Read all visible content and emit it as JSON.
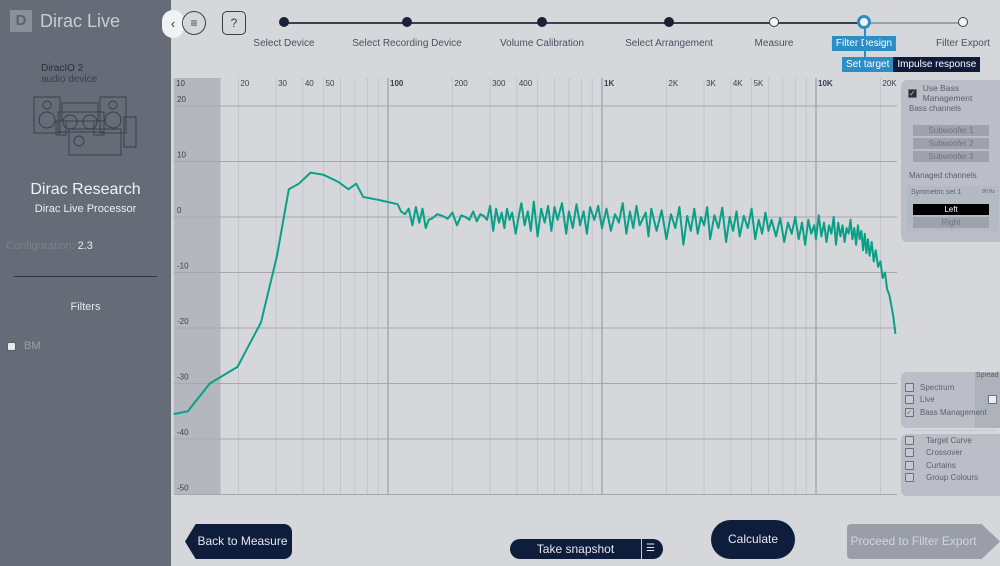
{
  "app": {
    "logo_mark": "D",
    "title": "Dirac Live"
  },
  "device": {
    "name": "DiracIO 2",
    "sub": "audio device",
    "brand": "Dirac Research",
    "processor": "Dirac Live Processor",
    "config_label": "Configuration:",
    "config_value": "2.3"
  },
  "filters": {
    "title": "Filters",
    "items": [
      {
        "label": "BM",
        "checked": false
      }
    ]
  },
  "toolbar": {
    "collapse_icon": "chevron-left-icon",
    "menu_icon": "hamburger-icon",
    "help_label": "?"
  },
  "steps": [
    {
      "label": "Select Device",
      "state": "done"
    },
    {
      "label": "Select Recording Device",
      "state": "done"
    },
    {
      "label": "Volume Calibration",
      "state": "done"
    },
    {
      "label": "Select Arrangement",
      "state": "done"
    },
    {
      "label": "Measure",
      "state": "open"
    },
    {
      "label": "Filter Design",
      "state": "current"
    },
    {
      "label": "Filter Export",
      "state": "open"
    }
  ],
  "subtabs": {
    "set_target": "Set target",
    "impulse": "Impulse response"
  },
  "bass": {
    "use_label": "Use Bass Management",
    "use_checked": true,
    "channels_title": "Bass channels",
    "channels": [
      "Subwoofer 1",
      "Subwoofer 2",
      "Subwoofer 3"
    ],
    "managed_title": "Managed channels",
    "set_name": "Symmetric set 1",
    "set_freq": "90 Hz",
    "managed": [
      {
        "label": "Left",
        "selected": true
      },
      {
        "label": "Right",
        "selected": false
      }
    ]
  },
  "display": {
    "spread_label": "Spread",
    "options": [
      {
        "label": "Spectrum",
        "checked": false
      },
      {
        "label": "Live",
        "checked": false
      },
      {
        "label": "Bass Management",
        "checked": true
      }
    ],
    "options2": [
      {
        "label": "Target Curve",
        "checked": false
      },
      {
        "label": "Crossover",
        "checked": false
      },
      {
        "label": "Curtains",
        "checked": false
      },
      {
        "label": "Group Colours",
        "checked": false
      }
    ]
  },
  "buttons": {
    "back": "Back to Measure",
    "snapshot": "Take snapshot",
    "calculate": "Calculate",
    "proceed": "Proceed to Filter Export"
  },
  "chart_data": {
    "type": "line",
    "xscale": "log",
    "xlim": [
      10,
      24000
    ],
    "ylim": [
      -50,
      20
    ],
    "grid": true,
    "x_ticks": [
      {
        "v": 10,
        "l": "10"
      },
      {
        "v": 20,
        "l": "20"
      },
      {
        "v": 30,
        "l": "30"
      },
      {
        "v": 40,
        "l": "40"
      },
      {
        "v": 50,
        "l": "50"
      },
      {
        "v": 100,
        "l": "100"
      },
      {
        "v": 200,
        "l": "200"
      },
      {
        "v": 300,
        "l": "300"
      },
      {
        "v": 400,
        "l": "400"
      },
      {
        "v": 1000,
        "l": "1K"
      },
      {
        "v": 2000,
        "l": "2K"
      },
      {
        "v": 3000,
        "l": "3K"
      },
      {
        "v": 4000,
        "l": "4K"
      },
      {
        "v": 5000,
        "l": "5K"
      },
      {
        "v": 10000,
        "l": "10K"
      },
      {
        "v": 20000,
        "l": "20K"
      }
    ],
    "y_ticks": [
      20,
      10,
      0,
      -10,
      -20,
      -30,
      -40,
      -50
    ],
    "shaded_below_hz": 16.5,
    "series_color": "#0aa088",
    "points": [
      [
        10,
        -35.5
      ],
      [
        11.6,
        -35
      ],
      [
        14.7,
        -30
      ],
      [
        19.8,
        -27
      ],
      [
        25.5,
        -19
      ],
      [
        30.3,
        -7
      ],
      [
        34.4,
        5
      ],
      [
        38.3,
        6
      ],
      [
        43.5,
        8
      ],
      [
        50,
        7.6
      ],
      [
        58.7,
        6.3
      ],
      [
        65.3,
        5
      ],
      [
        71,
        6
      ],
      [
        76.6,
        3.6
      ],
      [
        90,
        3.1
      ],
      [
        111,
        2.3
      ],
      [
        115,
        1
      ],
      [
        120,
        0.5
      ],
      [
        125,
        1.5
      ],
      [
        130,
        -1.5
      ],
      [
        135,
        1.8
      ],
      [
        140,
        -1
      ],
      [
        145,
        1.5
      ],
      [
        150,
        -2
      ],
      [
        155,
        -0.5
      ],
      [
        160,
        -0.3
      ],
      [
        170,
        0.5
      ],
      [
        180,
        0.2
      ],
      [
        190,
        -0.3
      ],
      [
        200,
        0.8
      ],
      [
        210,
        -1.5
      ],
      [
        220,
        0.3
      ],
      [
        230,
        0
      ],
      [
        240,
        -0.5
      ],
      [
        250,
        1
      ],
      [
        260,
        -0.8
      ],
      [
        270,
        0.5
      ],
      [
        280,
        0.2
      ],
      [
        290,
        -0.5
      ],
      [
        300,
        2
      ],
      [
        310,
        -2.5
      ],
      [
        320,
        1.5
      ],
      [
        330,
        -1
      ],
      [
        340,
        0.8
      ],
      [
        350,
        -2
      ],
      [
        360,
        1.5
      ],
      [
        370,
        -0.5
      ],
      [
        380,
        0.8
      ],
      [
        395,
        -3
      ],
      [
        410,
        0.5
      ],
      [
        420,
        2.5
      ],
      [
        435,
        -1.5
      ],
      [
        450,
        1
      ],
      [
        465,
        -2.5
      ],
      [
        480,
        2.8
      ],
      [
        500,
        -3.5
      ],
      [
        520,
        1.5
      ],
      [
        540,
        -1
      ],
      [
        560,
        2
      ],
      [
        580,
        -2.5
      ],
      [
        600,
        1.8
      ],
      [
        620,
        -0.5
      ],
      [
        650,
        2.5
      ],
      [
        680,
        -3
      ],
      [
        700,
        1
      ],
      [
        730,
        -2
      ],
      [
        760,
        2.3
      ],
      [
        790,
        -1.5
      ],
      [
        820,
        1
      ],
      [
        850,
        -3
      ],
      [
        880,
        1.8
      ],
      [
        920,
        -0.5
      ],
      [
        960,
        2
      ],
      [
        1000,
        -2
      ],
      [
        1050,
        1.5
      ],
      [
        1100,
        -2.5
      ],
      [
        1150,
        0.5
      ],
      [
        1200,
        -1
      ],
      [
        1250,
        2.5
      ],
      [
        1300,
        -3
      ],
      [
        1350,
        1
      ],
      [
        1400,
        -2
      ],
      [
        1450,
        2
      ],
      [
        1500,
        -1.5
      ],
      [
        1600,
        0.8
      ],
      [
        1650,
        -3.5
      ],
      [
        1700,
        1.5
      ],
      [
        1800,
        -2.5
      ],
      [
        1900,
        1.2
      ],
      [
        2000,
        -4
      ],
      [
        2100,
        0.5
      ],
      [
        2200,
        -2
      ],
      [
        2300,
        1.8
      ],
      [
        2400,
        -5
      ],
      [
        2500,
        0.2
      ],
      [
        2600,
        -2.5
      ],
      [
        2700,
        1.5
      ],
      [
        2800,
        -3
      ],
      [
        2900,
        0
      ],
      [
        3000,
        -1.5
      ],
      [
        3100,
        1.8
      ],
      [
        3200,
        -4
      ],
      [
        3350,
        0.3
      ],
      [
        3500,
        -2
      ],
      [
        3650,
        1.7
      ],
      [
        3800,
        -4.5
      ],
      [
        3950,
        0
      ],
      [
        4100,
        -2.5
      ],
      [
        4250,
        1
      ],
      [
        4400,
        -3.5
      ],
      [
        4600,
        0.2
      ],
      [
        4800,
        -2
      ],
      [
        5000,
        1.5
      ],
      [
        5200,
        -4
      ],
      [
        5400,
        -0.5
      ],
      [
        5600,
        -3
      ],
      [
        5800,
        0.8
      ],
      [
        6000,
        -2.5
      ],
      [
        6200,
        -0.5
      ],
      [
        6500,
        -3.5
      ],
      [
        6800,
        -0.2
      ],
      [
        7100,
        -4.5
      ],
      [
        7400,
        -1
      ],
      [
        7700,
        -3
      ],
      [
        8000,
        0
      ],
      [
        8300,
        -4
      ],
      [
        8600,
        -1
      ],
      [
        8900,
        -5
      ],
      [
        9200,
        -0.5
      ],
      [
        9500,
        -3
      ],
      [
        9800,
        -1.5
      ],
      [
        10000,
        -4
      ],
      [
        10300,
        0.3
      ],
      [
        10600,
        -3.5
      ],
      [
        10900,
        -1
      ],
      [
        11200,
        -4.5
      ],
      [
        11500,
        -1.5
      ],
      [
        11800,
        -3
      ],
      [
        12100,
        0
      ],
      [
        12400,
        -5
      ],
      [
        12700,
        -1
      ],
      [
        13000,
        -3.5
      ],
      [
        13300,
        -1.5
      ],
      [
        13600,
        -4.5
      ],
      [
        13900,
        -2
      ],
      [
        14200,
        -3
      ],
      [
        14500,
        -0.5
      ],
      [
        14800,
        -4
      ],
      [
        15100,
        -2
      ],
      [
        15400,
        -5
      ],
      [
        15700,
        -1.5
      ],
      [
        16000,
        -4
      ],
      [
        16300,
        -2.5
      ],
      [
        16600,
        -6
      ],
      [
        16900,
        -3
      ],
      [
        17200,
        -6.5
      ],
      [
        17500,
        -4
      ],
      [
        17800,
        -7
      ],
      [
        18200,
        -4.5
      ],
      [
        18600,
        -8
      ],
      [
        19000,
        -6
      ],
      [
        19500,
        -9
      ],
      [
        20000,
        -8
      ],
      [
        20500,
        -11
      ],
      [
        21000,
        -10
      ],
      [
        21500,
        -13
      ],
      [
        22000,
        -14
      ],
      [
        22500,
        -16
      ],
      [
        23000,
        -18
      ],
      [
        23500,
        -21
      ]
    ]
  }
}
